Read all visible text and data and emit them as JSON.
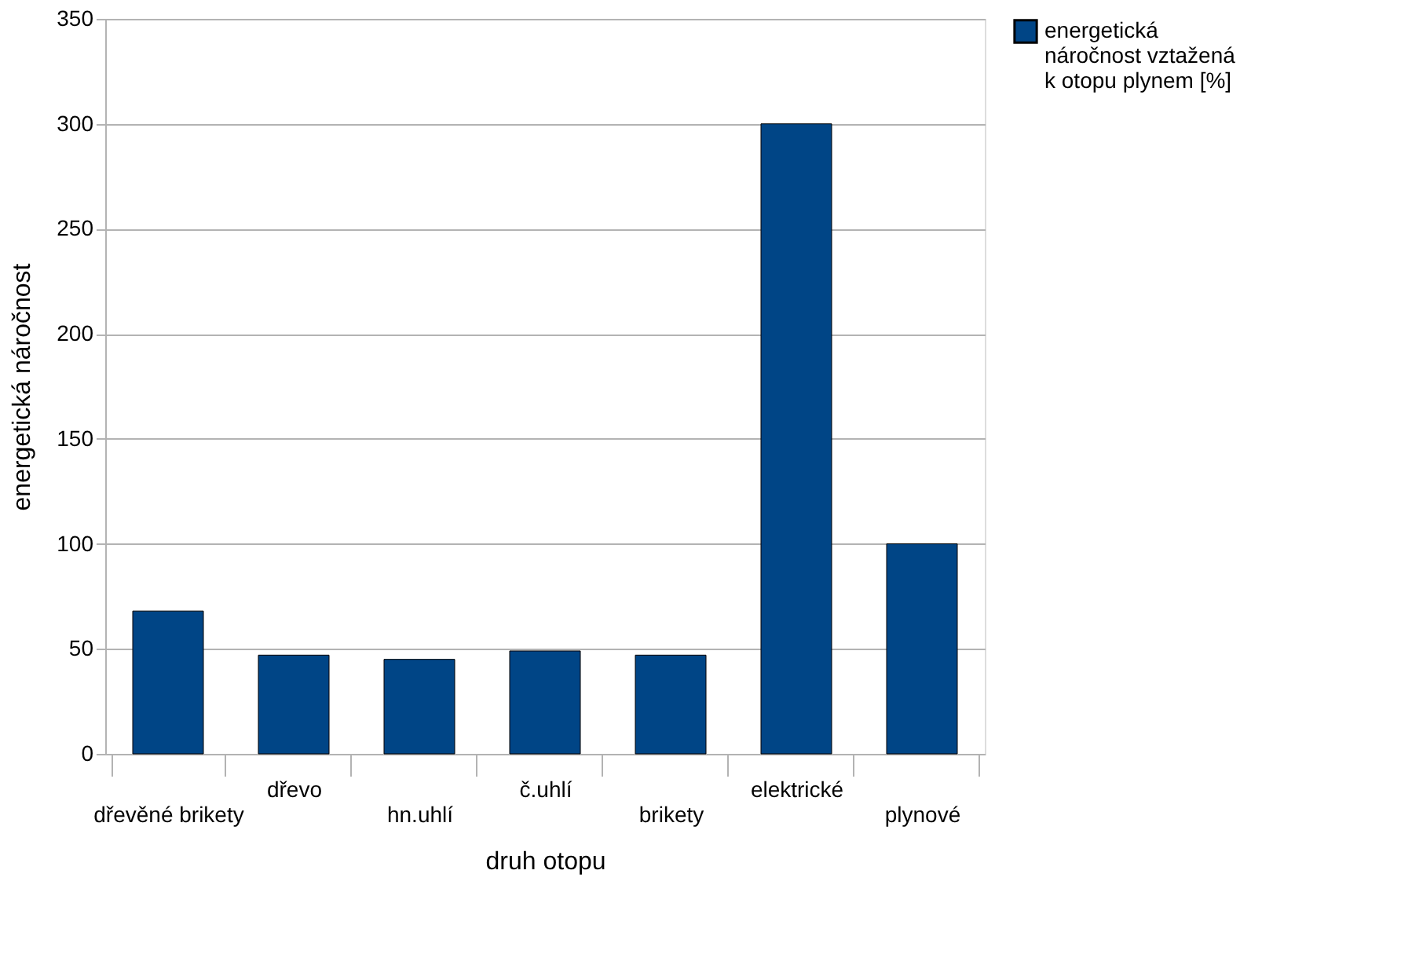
{
  "chart_data": {
    "type": "bar",
    "categories": [
      "dřevěné brikety",
      "dřevo",
      "hn.uhlí",
      "č.uhlí",
      "brikety",
      "elektrické",
      "plynové"
    ],
    "series": [
      {
        "name": "energetická náročnost vztažená  k otopu plynem [%]",
        "color": "#004586",
        "values": [
          68,
          47,
          45,
          49,
          47,
          300,
          100
        ]
      }
    ],
    "xlabel": "druh otopu",
    "ylabel": "energetická náročnost",
    "ylim": [
      0,
      350
    ],
    "yticks": [
      0,
      50,
      100,
      150,
      200,
      250,
      300,
      350
    ],
    "grid": "y",
    "legend": "right"
  }
}
